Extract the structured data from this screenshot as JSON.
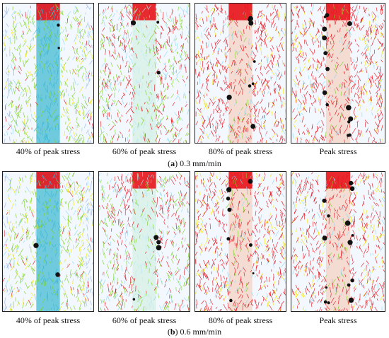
{
  "figure": {
    "rows": [
      {
        "label": "a",
        "rate": "0.3 mm/min",
        "panels": [
          {
            "caption": "40% of peak stress",
            "stage": 0.4
          },
          {
            "caption": "60% of peak stress",
            "stage": 0.6
          },
          {
            "caption": "80% of peak stress",
            "stage": 0.8
          },
          {
            "caption": "Peak stress",
            "stage": 1.0
          }
        ]
      },
      {
        "label": "b",
        "rate": "0.6 mm/min",
        "panels": [
          {
            "caption": "40% of peak stress",
            "stage": 0.4
          },
          {
            "caption": "60% of peak stress",
            "stage": 0.6
          },
          {
            "caption": "80% of peak stress",
            "stage": 0.8
          },
          {
            "caption": "Peak stress",
            "stage": 1.0
          }
        ]
      }
    ],
    "colors": {
      "low": "#8fd8f0",
      "mid": "#7ed321",
      "yellow": "#f2e600",
      "high": "#e8141c",
      "damage": "#111111"
    }
  }
}
